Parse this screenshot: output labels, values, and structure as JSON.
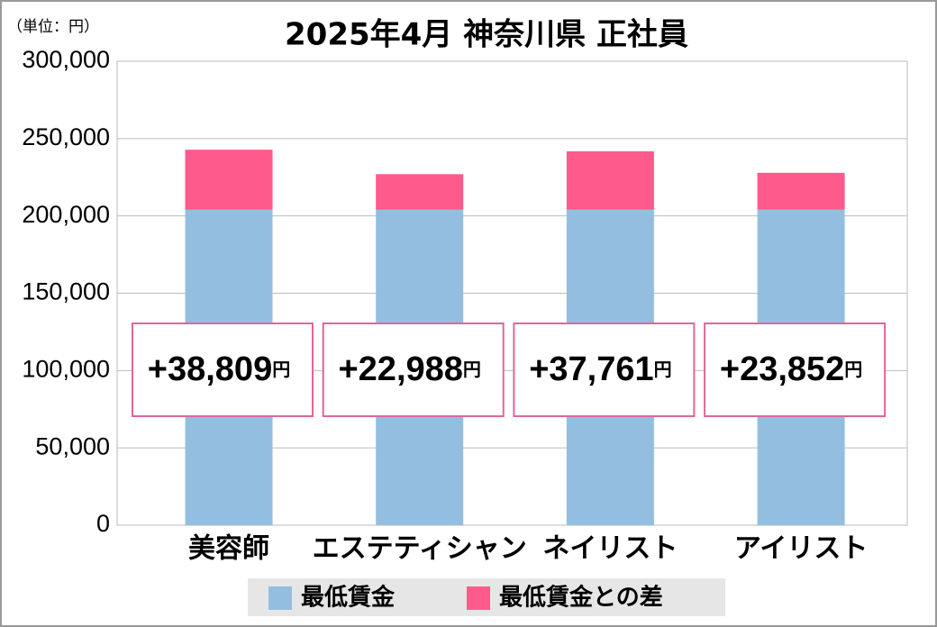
{
  "chart_data": {
    "type": "stacked_bar",
    "title": "2025年4月 神奈川県 正社員",
    "unit_label": "（単位：円）",
    "categories": [
      "美容師",
      "エステティシャン",
      "ネイリスト",
      "アイリスト"
    ],
    "series": [
      {
        "name": "最低賃金",
        "color": "#94bedf",
        "values": [
          204000,
          204000,
          204000,
          204000
        ]
      },
      {
        "name": "最低賃金との差",
        "color": "#ff5a8c",
        "values": [
          38809,
          22988,
          37761,
          23852
        ],
        "value_labels": [
          "+38,809",
          "+22,988",
          "+37,761",
          "+23,852"
        ],
        "value_label_unit": "円"
      }
    ],
    "ylim": [
      0,
      300000
    ],
    "yticks": [
      0,
      {
        "value": 50000,
        "label": "50,000"
      },
      {
        "value": 100000,
        "label": "100,000"
      },
      {
        "value": 150000,
        "label": "150,000"
      },
      {
        "value": 200000,
        "label": "200,000"
      },
      {
        "value": 250000,
        "label": "250,000"
      },
      {
        "value": 300000,
        "label": "300,000"
      }
    ],
    "grid": true
  }
}
